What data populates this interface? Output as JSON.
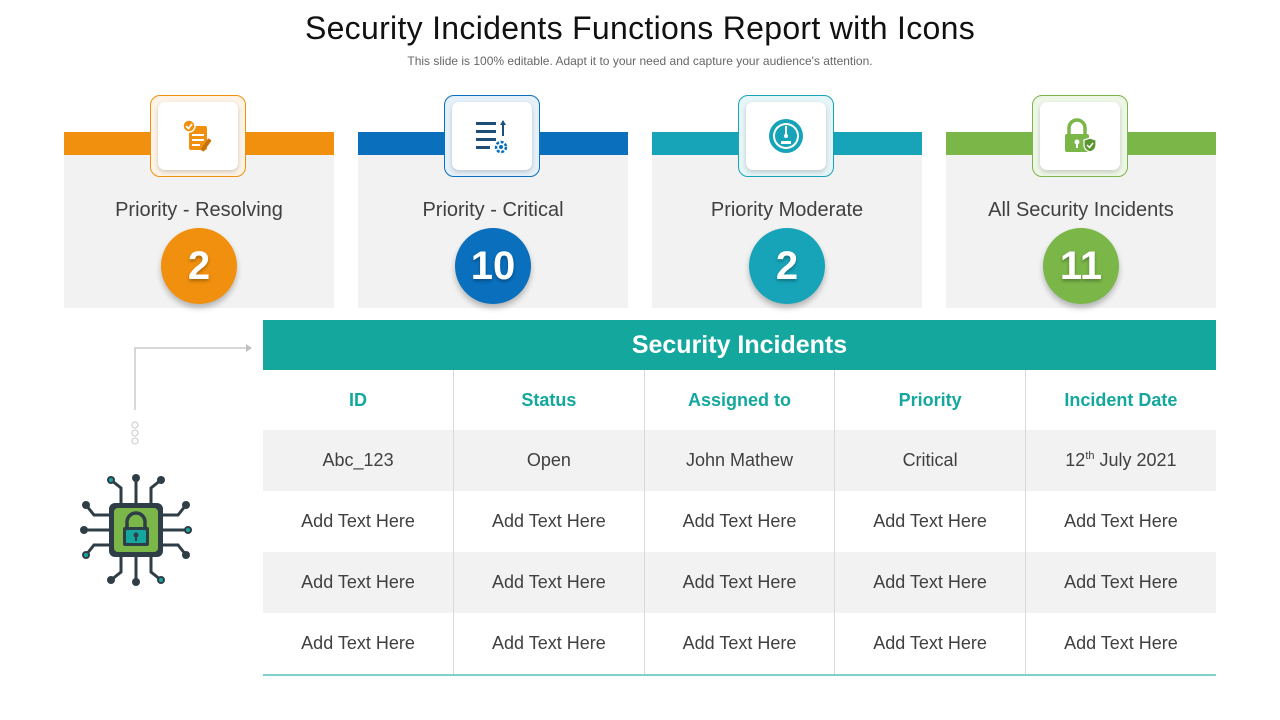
{
  "title": "Security Incidents Functions Report with Icons",
  "subtitle": "This slide is 100% editable. Adapt it to your need and capture your audience's attention.",
  "cards": [
    {
      "label": "Priority - Resolving",
      "value": "2",
      "icon": "clipboard-check-icon",
      "color": "#f0900e"
    },
    {
      "label": "Priority - Critical",
      "value": "10",
      "icon": "list-settings-icon",
      "color": "#0a6fbd"
    },
    {
      "label": "Priority Moderate",
      "value": "2",
      "icon": "gauge-icon",
      "color": "#17a3b8"
    },
    {
      "label": "All Security Incidents",
      "value": "11",
      "icon": "padlock-shield-icon",
      "color": "#7ab648"
    }
  ],
  "table": {
    "title": "Security Incidents",
    "headers": [
      "ID",
      "Status",
      "Assigned to",
      "Priority",
      "Incident Date"
    ],
    "rows": [
      [
        "Abc_123",
        "Open",
        "John Mathew",
        "Critical",
        "12th July 2021"
      ],
      [
        "Add Text Here",
        "Add Text Here",
        "Add Text Here",
        "Add Text Here",
        "Add Text Here"
      ],
      [
        "Add Text Here",
        "Add Text Here",
        "Add Text Here",
        "Add Text Here",
        "Add Text Here"
      ],
      [
        "Add Text Here",
        "Add Text Here",
        "Add Text Here",
        "Add Text Here",
        "Add Text Here"
      ]
    ]
  },
  "decor": {
    "chip_icon": "circuit-chip-lock-icon",
    "accent": "#14a79e"
  }
}
